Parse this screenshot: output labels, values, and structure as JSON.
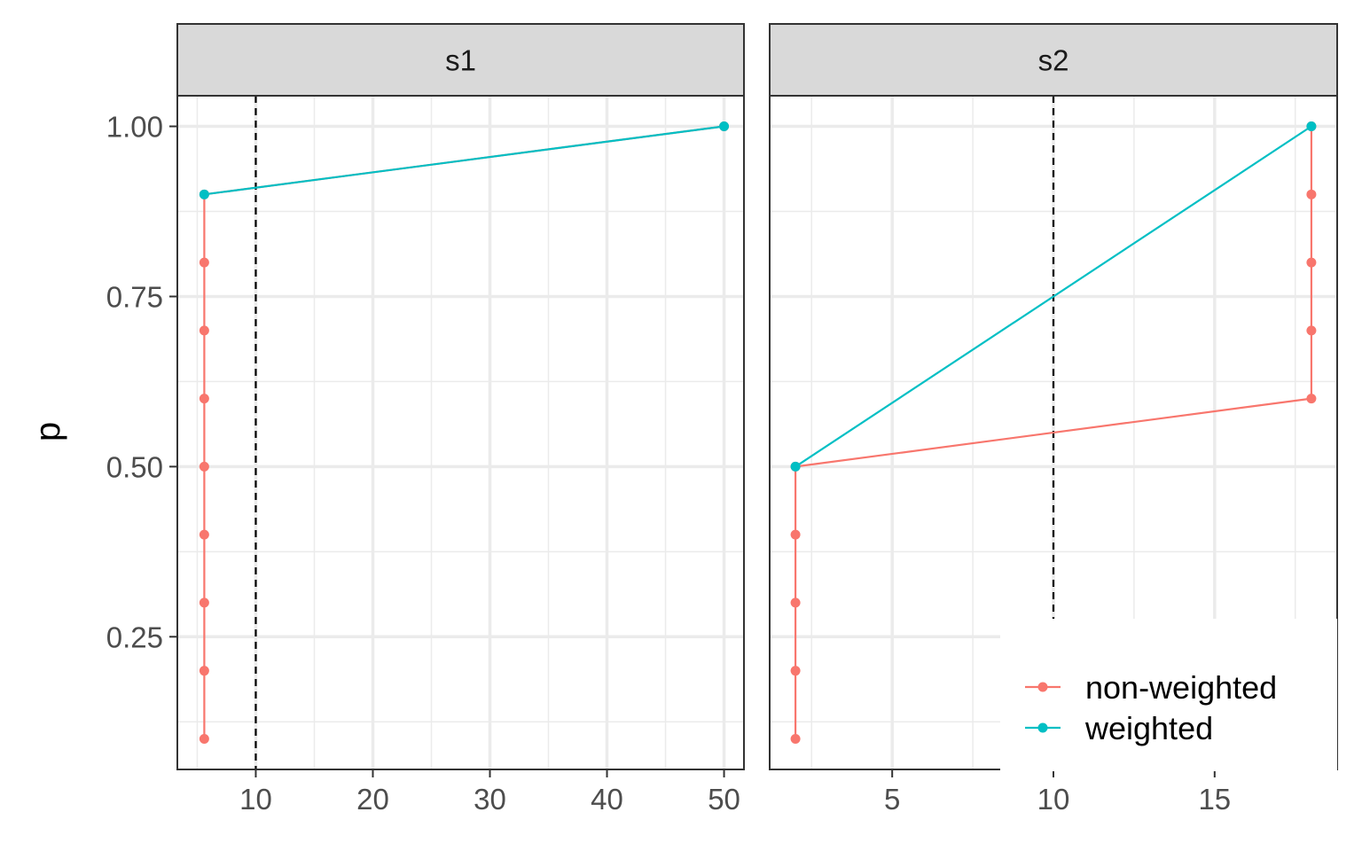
{
  "chart_data": {
    "type": "line",
    "ylabel": "p",
    "xlabel": "",
    "ylim": [
      0.055,
      1.045
    ],
    "yticks": [
      0.25,
      0.5,
      0.75,
      1.0
    ],
    "ytick_labels": [
      "0.25",
      "0.50",
      "0.75",
      "1.00"
    ],
    "y_minor": [
      0.125,
      0.375,
      0.625,
      0.875
    ],
    "grid": true,
    "legend_position": "bottom-right",
    "colors": {
      "non-weighted": "#F8766D",
      "weighted": "#00BFC4"
    },
    "legend": [
      {
        "key": "non-weighted",
        "label": "non-weighted"
      },
      {
        "key": "weighted",
        "label": "weighted"
      }
    ],
    "panels": [
      {
        "strip": "s1",
        "xlim": [
          3.3,
          51.7
        ],
        "xticks": [
          10,
          20,
          30,
          40,
          50
        ],
        "xtick_labels": [
          "10",
          "20",
          "30",
          "40",
          "50"
        ],
        "x_minor": [
          5,
          15,
          25,
          35,
          45
        ],
        "vline": 10,
        "series": [
          {
            "key": "non-weighted",
            "points": [
              [
                5.6,
                0.1
              ],
              [
                5.6,
                0.2
              ],
              [
                5.6,
                0.3
              ],
              [
                5.6,
                0.4
              ],
              [
                5.6,
                0.5
              ],
              [
                5.6,
                0.6
              ],
              [
                5.6,
                0.7
              ],
              [
                5.6,
                0.8
              ],
              [
                5.6,
                0.9
              ],
              [
                50,
                1.0
              ]
            ]
          },
          {
            "key": "weighted",
            "points": [
              [
                5.6,
                0.9
              ],
              [
                50,
                1.0
              ]
            ]
          }
        ]
      },
      {
        "strip": "s2",
        "xlim": [
          1.2,
          18.8
        ],
        "xticks": [
          5,
          10,
          15
        ],
        "xtick_labels": [
          "5",
          "10",
          "15"
        ],
        "x_minor": [
          2.5,
          7.5,
          12.5,
          17.5
        ],
        "vline": 10,
        "series": [
          {
            "key": "non-weighted",
            "points": [
              [
                2,
                0.1
              ],
              [
                2,
                0.2
              ],
              [
                2,
                0.3
              ],
              [
                2,
                0.4
              ],
              [
                2,
                0.5
              ],
              [
                18,
                0.6
              ],
              [
                18,
                0.7
              ],
              [
                18,
                0.8
              ],
              [
                18,
                0.9
              ],
              [
                18,
                1.0
              ]
            ]
          },
          {
            "key": "weighted",
            "points": [
              [
                2,
                0.5
              ],
              [
                18,
                1.0
              ]
            ]
          }
        ]
      }
    ]
  }
}
